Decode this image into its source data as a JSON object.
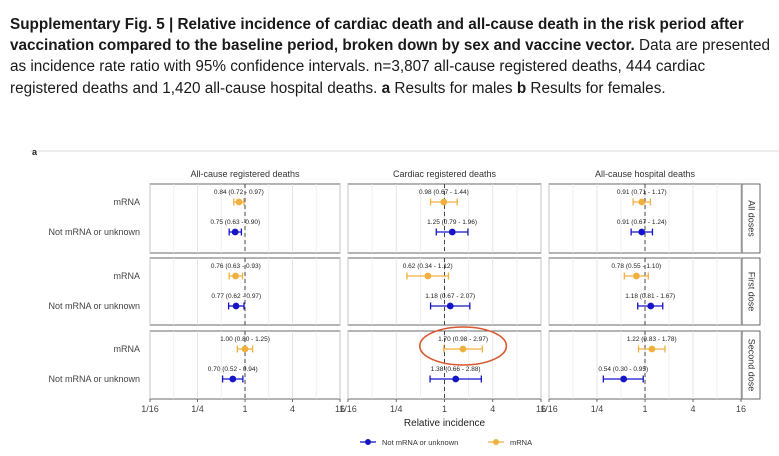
{
  "caption": {
    "title": "Supplementary Fig. 5 | Relative incidence of cardiac death and all-cause death in the risk period after vaccination compared to the baseline period, broken down by sex and vaccine vector.",
    "body_1": " Data are presented as incidence rate ratio with 95% confidence intervals. n=3,807 all-cause registered deaths, 444 cardiac registered deaths and 1,420 all-cause hospital deaths. ",
    "label_a": "a",
    "body_2": " Results for males ",
    "label_b": "b",
    "body_3": " Results for females."
  },
  "panel_label": "a",
  "colors": {
    "not_mrna": "#1515c8",
    "mrna": "#f0b040",
    "highlight_circle": "#d9582f"
  },
  "chart_data": {
    "type": "forest",
    "xlabel": "Relative incidence",
    "x_scale": "log2",
    "xlim": [
      0.0625,
      16
    ],
    "xticks": [
      "1/16",
      "1/4",
      "1",
      "4",
      "16"
    ],
    "reference_line": 1,
    "columns": [
      "All-cause registered deaths",
      "Cardiac registered deaths",
      "All-cause hospital deaths"
    ],
    "rows": [
      "All doses",
      "First dose",
      "Second dose"
    ],
    "categories": [
      "mRNA",
      "Not mRNA or unknown"
    ],
    "legend": {
      "position": "bottom",
      "entries": [
        {
          "name": "Not mRNA or unknown",
          "color": "#1515c8"
        },
        {
          "name": "mRNA",
          "color": "#f0b040"
        }
      ]
    },
    "points": [
      {
        "row": "All doses",
        "column": "All-cause registered deaths",
        "group": "mRNA",
        "est": 0.84,
        "lo": 0.72,
        "hi": 0.97,
        "label": "0.84 (0.72 - 0.97)"
      },
      {
        "row": "All doses",
        "column": "All-cause registered deaths",
        "group": "Not mRNA or unknown",
        "est": 0.75,
        "lo": 0.63,
        "hi": 0.9,
        "label": "0.75 (0.63 - 0.90)"
      },
      {
        "row": "All doses",
        "column": "Cardiac registered deaths",
        "group": "mRNA",
        "est": 0.98,
        "lo": 0.67,
        "hi": 1.44,
        "label": "0.98 (0.67 - 1.44)"
      },
      {
        "row": "All doses",
        "column": "Cardiac registered deaths",
        "group": "Not mRNA or unknown",
        "est": 1.25,
        "lo": 0.79,
        "hi": 1.96,
        "label": "1.25 (0.79 - 1.96)"
      },
      {
        "row": "All doses",
        "column": "All-cause hospital deaths",
        "group": "mRNA",
        "est": 0.91,
        "lo": 0.71,
        "hi": 1.17,
        "label": "0.91 (0.71 - 1.17)"
      },
      {
        "row": "All doses",
        "column": "All-cause hospital deaths",
        "group": "Not mRNA or unknown",
        "est": 0.91,
        "lo": 0.67,
        "hi": 1.24,
        "label": "0.91 (0.67 - 1.24)"
      },
      {
        "row": "First dose",
        "column": "All-cause registered deaths",
        "group": "mRNA",
        "est": 0.76,
        "lo": 0.63,
        "hi": 0.93,
        "label": "0.76 (0.63 - 0.93)"
      },
      {
        "row": "First dose",
        "column": "All-cause registered deaths",
        "group": "Not mRNA or unknown",
        "est": 0.77,
        "lo": 0.62,
        "hi": 0.97,
        "label": "0.77 (0.62 - 0.97)"
      },
      {
        "row": "First dose",
        "column": "Cardiac registered deaths",
        "group": "mRNA",
        "est": 0.62,
        "lo": 0.34,
        "hi": 1.12,
        "label": "0.62 (0.34 - 1.12)"
      },
      {
        "row": "First dose",
        "column": "Cardiac registered deaths",
        "group": "Not mRNA or unknown",
        "est": 1.18,
        "lo": 0.67,
        "hi": 2.07,
        "label": "1.18 (0.67 - 2.07)"
      },
      {
        "row": "First dose",
        "column": "All-cause hospital deaths",
        "group": "mRNA",
        "est": 0.78,
        "lo": 0.55,
        "hi": 1.1,
        "label": "0.78 (0.55 - 1.10)"
      },
      {
        "row": "First dose",
        "column": "All-cause hospital deaths",
        "group": "Not mRNA or unknown",
        "est": 1.18,
        "lo": 0.81,
        "hi": 1.67,
        "label": "1.18 (0.81 - 1.67)"
      },
      {
        "row": "Second dose",
        "column": "All-cause registered deaths",
        "group": "mRNA",
        "est": 1.0,
        "lo": 0.8,
        "hi": 1.25,
        "label": "1.00 (0.80 - 1.25)"
      },
      {
        "row": "Second dose",
        "column": "All-cause registered deaths",
        "group": "Not mRNA or unknown",
        "est": 0.7,
        "lo": 0.52,
        "hi": 0.94,
        "label": "0.70 (0.52 - 0.94)"
      },
      {
        "row": "Second dose",
        "column": "Cardiac registered deaths",
        "group": "mRNA",
        "est": 1.7,
        "lo": 0.98,
        "hi": 2.97,
        "label": "1.70 (0.98 - 2.97)",
        "highlighted": true
      },
      {
        "row": "Second dose",
        "column": "Cardiac registered deaths",
        "group": "Not mRNA or unknown",
        "est": 1.38,
        "lo": 0.66,
        "hi": 2.88,
        "label": "1.38 (0.66 - 2.88)"
      },
      {
        "row": "Second dose",
        "column": "All-cause hospital deaths",
        "group": "mRNA",
        "est": 1.22,
        "lo": 0.83,
        "hi": 1.78,
        "label": "1.22 (0.83 - 1.78)"
      },
      {
        "row": "Second dose",
        "column": "All-cause hospital deaths",
        "group": "Not mRNA or unknown",
        "est": 0.54,
        "lo": 0.3,
        "hi": 0.95,
        "label": "0.54 (0.30 - 0.95)"
      }
    ]
  }
}
